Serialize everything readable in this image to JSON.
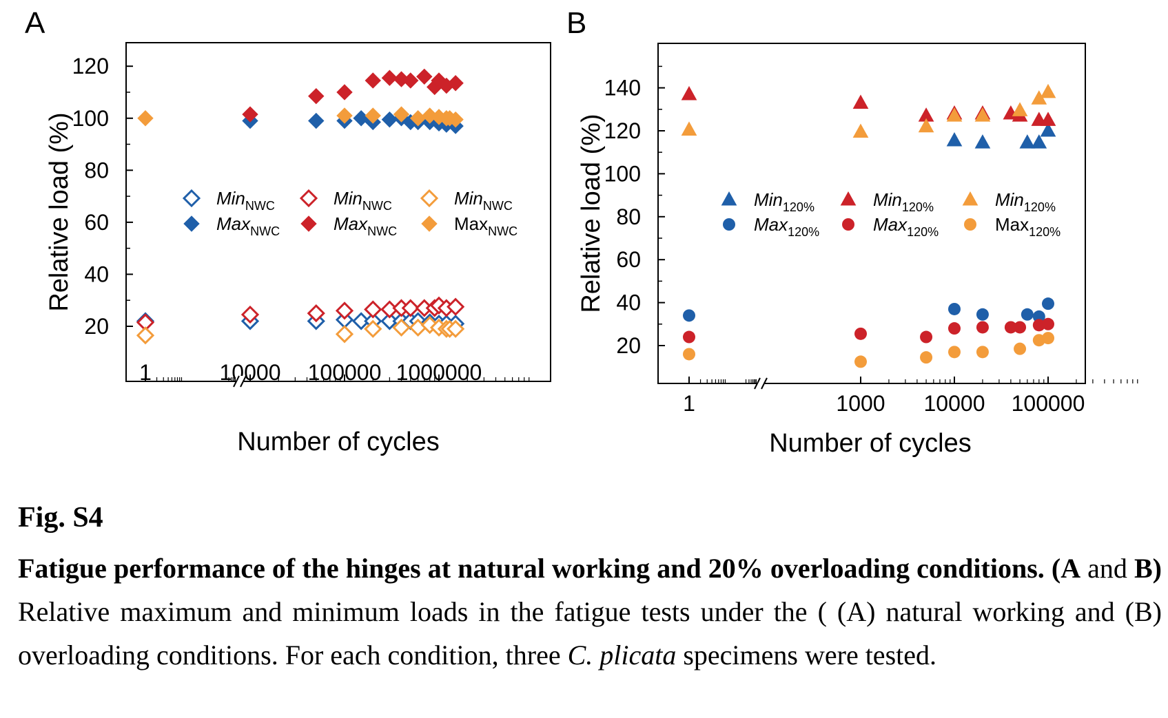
{
  "panels": [
    {
      "letter": "A",
      "ylabel": "Relative load (%)",
      "xlabel": "Number of cycles",
      "yticks": [
        "20",
        "40",
        "60",
        "80",
        "100",
        "120"
      ],
      "xticks": [
        "1",
        "10000",
        "100000",
        "1000000"
      ],
      "legend": [
        {
          "text": "Min",
          "sub": "NWC",
          "italic": true,
          "color": "#1f5fa9",
          "shape": "diamond-open"
        },
        {
          "text": "Max",
          "sub": "NWC",
          "italic": true,
          "color": "#1f5fa9",
          "shape": "diamond"
        },
        {
          "text": "Min",
          "sub": "NWC",
          "italic": true,
          "color": "#cc2229",
          "shape": "diamond-open"
        },
        {
          "text": "Max",
          "sub": "NWC",
          "italic": true,
          "color": "#cc2229",
          "shape": "diamond"
        },
        {
          "text": "Min",
          "sub": "NWC",
          "italic": true,
          "color": "#f39c3b",
          "shape": "diamond-open"
        },
        {
          "text": "Max",
          "sub": "NWC",
          "italic": false,
          "color": "#f39c3b",
          "shape": "diamond"
        }
      ]
    },
    {
      "letter": "B",
      "ylabel": "Relative load (%)",
      "xlabel": "Number of cycles",
      "yticks": [
        "20",
        "40",
        "60",
        "80",
        "100",
        "120",
        "140"
      ],
      "xticks": [
        "1",
        "1000",
        "10000",
        "100000"
      ],
      "legend": [
        {
          "text": "Min",
          "sub": "120%",
          "italic": true,
          "color": "#1f5fa9",
          "shape": "triangle"
        },
        {
          "text": "Max",
          "sub": "120%",
          "italic": true,
          "color": "#1f5fa9",
          "shape": "circle"
        },
        {
          "text": "Min",
          "sub": "120%",
          "italic": true,
          "color": "#cc2229",
          "shape": "triangle"
        },
        {
          "text": "Max",
          "sub": "120%",
          "italic": true,
          "color": "#cc2229",
          "shape": "circle"
        },
        {
          "text": "Min",
          "sub": "120%",
          "italic": true,
          "color": "#f39c3b",
          "shape": "triangle"
        },
        {
          "text": "Max",
          "sub": "120%",
          "italic": false,
          "color": "#f39c3b",
          "shape": "circle"
        }
      ]
    }
  ],
  "chart_data": [
    {
      "type": "scatter",
      "panel": "A",
      "xscale": "log (broken between 1 and 10000)",
      "xlabel": "Number of cycles",
      "ylabel": "Relative load (%)",
      "ylim": [
        8,
        130
      ],
      "grid": false,
      "legend_position": "center",
      "series": [
        {
          "name": "MinNWC",
          "color": "#1f5fa9",
          "marker": "diamond-open",
          "x": [
            1,
            10000,
            50000,
            100000,
            150000,
            200000,
            300000,
            400000,
            500000,
            600000,
            800000,
            1000000,
            1200000,
            1500000
          ],
          "y": [
            22,
            22,
            22,
            22.5,
            22,
            22,
            22,
            22,
            22,
            22,
            21.5,
            21,
            21,
            21
          ]
        },
        {
          "name": "MaxNWC",
          "color": "#1f5fa9",
          "marker": "diamond",
          "x": [
            10000,
            50000,
            100000,
            150000,
            200000,
            300000,
            400000,
            500000,
            600000,
            800000,
            1000000,
            1200000,
            1500000
          ],
          "y": [
            99,
            99,
            99,
            100,
            98.5,
            99.5,
            100,
            98.5,
            98.5,
            98.5,
            98,
            97.5,
            97
          ]
        },
        {
          "name": "MinNWC",
          "color": "#cc2229",
          "marker": "diamond-open",
          "x": [
            1,
            10000,
            50000,
            100000,
            200000,
            300000,
            400000,
            500000,
            700000,
            900000,
            1000000,
            1200000,
            1500000
          ],
          "y": [
            21.5,
            24.5,
            25,
            26,
            26.5,
            26.5,
            27,
            27,
            27,
            27,
            28,
            27,
            27.5
          ]
        },
        {
          "name": "MaxNWC",
          "color": "#cc2229",
          "marker": "diamond",
          "x": [
            10000,
            50000,
            100000,
            200000,
            300000,
            400000,
            500000,
            700000,
            900000,
            1000000,
            1200000,
            1500000
          ],
          "y": [
            101.5,
            108.5,
            110,
            114.5,
            115.5,
            115,
            114.5,
            116,
            112,
            114.5,
            112.5,
            113.5
          ]
        },
        {
          "name": "MinNWC",
          "color": "#f39c3b",
          "marker": "diamond-open",
          "x": [
            1,
            100000,
            200000,
            400000,
            600000,
            800000,
            1000000,
            1200000,
            1300000,
            1500000
          ],
          "y": [
            16.5,
            17,
            19,
            19.5,
            19.5,
            20.5,
            19.5,
            19,
            19,
            19
          ]
        },
        {
          "name": "MaxNWC",
          "color": "#f39c3b",
          "marker": "diamond",
          "x": [
            1,
            100000,
            200000,
            400000,
            600000,
            800000,
            1000000,
            1200000,
            1300000,
            1500000
          ],
          "y": [
            100,
            101,
            101,
            101.5,
            100,
            101,
            100.5,
            100,
            100,
            99.5
          ]
        }
      ]
    },
    {
      "type": "scatter",
      "panel": "B",
      "xscale": "log (broken between 1 and 1000)",
      "xlabel": "Number of cycles",
      "ylabel": "Relative load (%)",
      "ylim": [
        5,
        150
      ],
      "grid": false,
      "legend_position": "center",
      "series": [
        {
          "name": "Min120%",
          "color": "#1f5fa9",
          "marker": "triangle",
          "x": [
            10000,
            20000,
            60000,
            80000,
            100000
          ],
          "y": [
            115.5,
            114.5,
            114.5,
            114.5,
            120
          ]
        },
        {
          "name": "Max120%",
          "color": "#1f5fa9",
          "marker": "circle",
          "x": [
            1,
            10000,
            20000,
            60000,
            80000,
            100000
          ],
          "y": [
            34,
            37,
            34.5,
            34.5,
            33.5,
            39.5
          ]
        },
        {
          "name": "Min120%",
          "color": "#cc2229",
          "marker": "triangle",
          "x": [
            1,
            1000,
            5000,
            10000,
            20000,
            40000,
            50000,
            80000,
            100000
          ],
          "y": [
            137,
            133,
            127,
            128,
            128,
            128,
            127,
            125,
            125
          ]
        },
        {
          "name": "Max120%",
          "color": "#cc2229",
          "marker": "circle",
          "x": [
            1,
            1000,
            5000,
            10000,
            20000,
            40000,
            50000,
            80000,
            100000
          ],
          "y": [
            24,
            25.5,
            24,
            28,
            28.5,
            28.5,
            28.5,
            29.5,
            30
          ]
        },
        {
          "name": "Min120%",
          "color": "#f39c3b",
          "marker": "triangle",
          "x": [
            1,
            1000,
            5000,
            10000,
            20000,
            50000,
            80000,
            100000
          ],
          "y": [
            120.5,
            119.5,
            122,
            127,
            127,
            129.5,
            135,
            138
          ]
        },
        {
          "name": "Max120%",
          "color": "#f39c3b",
          "marker": "circle",
          "x": [
            1,
            1000,
            5000,
            10000,
            20000,
            50000,
            80000,
            100000
          ],
          "y": [
            16,
            12.5,
            14.5,
            17,
            17,
            18.5,
            22.5,
            23.5
          ]
        }
      ]
    }
  ],
  "caption": {
    "fig_label": "Fig. S4",
    "title_bold": "Fatigue performance of the hinges at natural working and 20% overloading conditions. (",
    "a_bold": "A",
    "and_text": " and ",
    "b_bold": "B)",
    "body1": " Relative maximum and minimum loads in the fatigue tests under the ( (A) natural working and (B) overloading conditions. For each condition, three ",
    "genus_italic": "C. plicata",
    "body2": " specimens were tested."
  }
}
